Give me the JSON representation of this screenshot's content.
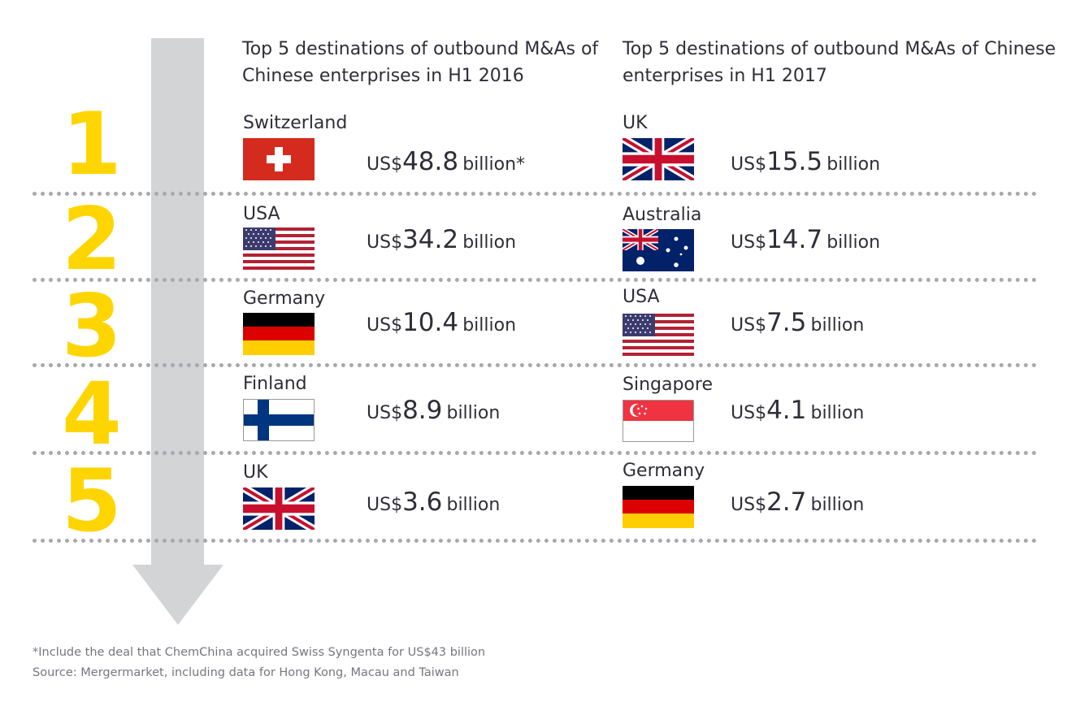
{
  "titles": {
    "h1_2016": "Top 5 destinations of outbound M&As of Chinese enterprises in H1 2016",
    "h1_2017": "Top 5 destinations of outbound M&As of Chinese enterprises in H1 2017"
  },
  "currency_label": "US$",
  "ranks": [
    "1",
    "2",
    "3",
    "4",
    "5"
  ],
  "rows_2016": [
    {
      "country": "Switzerland",
      "flag": "switzerland-flag",
      "value": "48.8",
      "unit": "billion*"
    },
    {
      "country": "USA",
      "flag": "usa-flag",
      "value": "34.2",
      "unit": "billion"
    },
    {
      "country": "Germany",
      "flag": "germany-flag",
      "value": "10.4",
      "unit": "billion"
    },
    {
      "country": "Finland",
      "flag": "finland-flag",
      "value": "8.9",
      "unit": "billion"
    },
    {
      "country": "UK",
      "flag": "uk-flag",
      "value": "3.6",
      "unit": "billion"
    }
  ],
  "rows_2017": [
    {
      "country": "UK",
      "flag": "uk-flag",
      "value": "15.5",
      "unit": "billion"
    },
    {
      "country": "Australia",
      "flag": "australia-flag",
      "value": "14.7",
      "unit": "billion"
    },
    {
      "country": "USA",
      "flag": "usa-flag",
      "value": "7.5",
      "unit": "billion"
    },
    {
      "country": "Singapore",
      "flag": "singapore-flag",
      "value": "4.1",
      "unit": "billion"
    },
    {
      "country": "Germany",
      "flag": "germany-flag",
      "value": "2.7",
      "unit": "billion"
    }
  ],
  "footnotes": {
    "note": "*Include the deal that ChemChina acquired Swiss Syngenta for US$43 billion",
    "source": "Source: Mergermarket, including data for Hong Kong, Macau and Taiwan"
  },
  "colors": {
    "rank_yellow": "#ffd500",
    "arrow_grey": "#d3d4d6",
    "divider_grey": "#a7a9ad"
  }
}
